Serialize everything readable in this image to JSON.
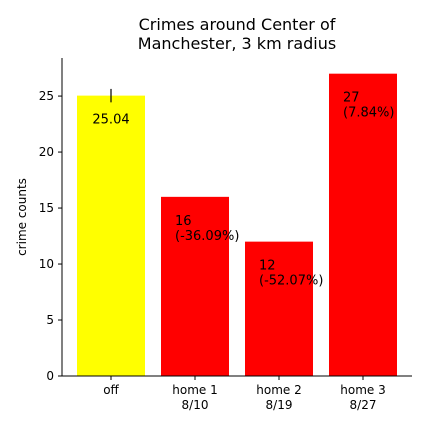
{
  "chart_data": {
    "type": "bar",
    "title_lines": [
      "Crimes around Center of",
      "Manchester, 3 km radius"
    ],
    "xlabel": "",
    "ylabel": "crime counts",
    "ylim": [
      0,
      28.4
    ],
    "yticks": [
      0,
      5,
      10,
      15,
      20,
      25
    ],
    "grid": false,
    "bars": [
      {
        "label_lines": [
          "off"
        ],
        "value": 25.04,
        "color": "#ffff00",
        "value_lines": [
          "25.04"
        ],
        "error_bar": 0.6
      },
      {
        "label_lines": [
          "home 1",
          "8/10"
        ],
        "value": 16,
        "color": "#ff0000",
        "value_lines": [
          "16",
          "(-36.09%)"
        ]
      },
      {
        "label_lines": [
          "home 2",
          "8/19"
        ],
        "value": 12,
        "color": "#ff0000",
        "value_lines": [
          "12",
          "(-52.07%)"
        ]
      },
      {
        "label_lines": [
          "home 3",
          "8/27"
        ],
        "value": 27,
        "color": "#ff0000",
        "value_lines": [
          "27",
          "(7.84%)"
        ]
      }
    ]
  }
}
